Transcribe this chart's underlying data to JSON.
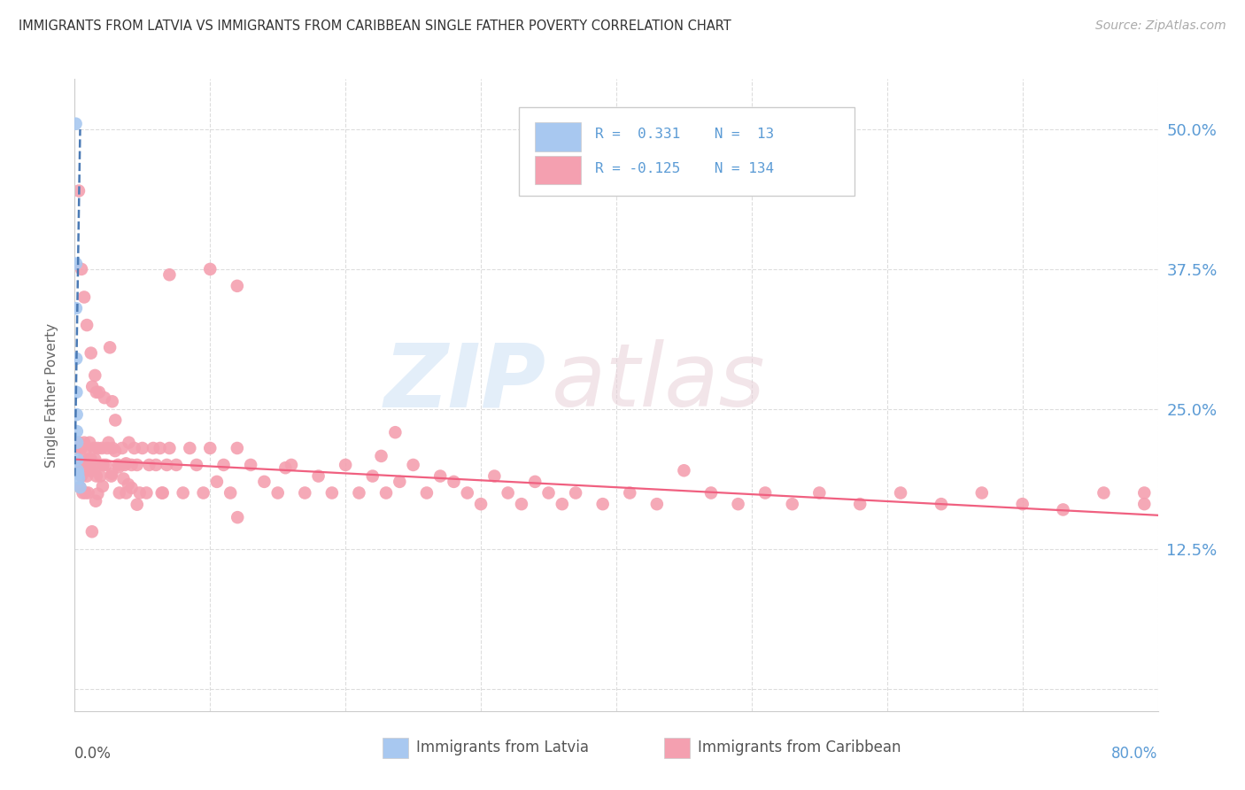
{
  "title": "IMMIGRANTS FROM LATVIA VS IMMIGRANTS FROM CARIBBEAN SINGLE FATHER POVERTY CORRELATION CHART",
  "source": "Source: ZipAtlas.com",
  "ylabel": "Single Father Poverty",
  "color_latvia": "#a8c8f0",
  "color_caribbean": "#f4a0b0",
  "color_trend_latvia": "#4a7ab5",
  "color_trend_caribbean": "#f06080",
  "color_axis_labels": "#5b9bd5",
  "color_title": "#333333",
  "color_source": "#aaaaaa",
  "color_grid": "#dddddd",
  "watermark_zip_color": "#cce0f5",
  "watermark_atlas_color": "#e8d0d8",
  "xlim": [
    0.0,
    0.8
  ],
  "ylim": [
    -0.02,
    0.545
  ],
  "yticks": [
    0.0,
    0.125,
    0.25,
    0.375,
    0.5
  ],
  "ytick_labels": [
    "",
    "12.5%",
    "25.0%",
    "37.5%",
    "50.0%"
  ],
  "xticks": [
    0.0,
    0.1,
    0.2,
    0.3,
    0.4,
    0.5,
    0.6,
    0.7,
    0.8
  ],
  "legend_r1": "R =  0.331",
  "legend_n1": "N =  13",
  "legend_r2": "R = -0.125",
  "legend_n2": "N = 134",
  "latvia_x": [
    0.0008,
    0.001,
    0.001,
    0.0012,
    0.0013,
    0.0015,
    0.0016,
    0.0018,
    0.002,
    0.0022,
    0.0025,
    0.003,
    0.004
  ],
  "latvia_y": [
    0.505,
    0.38,
    0.34,
    0.295,
    0.265,
    0.245,
    0.23,
    0.22,
    0.205,
    0.195,
    0.192,
    0.188,
    0.18
  ],
  "carib_x": [
    0.002,
    0.003,
    0.003,
    0.004,
    0.004,
    0.005,
    0.005,
    0.006,
    0.006,
    0.007,
    0.007,
    0.008,
    0.008,
    0.009,
    0.009,
    0.01,
    0.01,
    0.011,
    0.011,
    0.012,
    0.012,
    0.013,
    0.013,
    0.014,
    0.015,
    0.015,
    0.016,
    0.016,
    0.017,
    0.018,
    0.018,
    0.019,
    0.02,
    0.021,
    0.022,
    0.023,
    0.024,
    0.025,
    0.026,
    0.027,
    0.028,
    0.03,
    0.032,
    0.033,
    0.035,
    0.037,
    0.038,
    0.04,
    0.042,
    0.044,
    0.046,
    0.048,
    0.05,
    0.053,
    0.055,
    0.058,
    0.06,
    0.063,
    0.065,
    0.068,
    0.07,
    0.075,
    0.08,
    0.085,
    0.09,
    0.095,
    0.1,
    0.105,
    0.11,
    0.115,
    0.12,
    0.13,
    0.14,
    0.15,
    0.16,
    0.17,
    0.18,
    0.19,
    0.2,
    0.21,
    0.22,
    0.23,
    0.24,
    0.25,
    0.26,
    0.27,
    0.28,
    0.29,
    0.3,
    0.31,
    0.32,
    0.33,
    0.34,
    0.35,
    0.36,
    0.37,
    0.39,
    0.41,
    0.43,
    0.45,
    0.47,
    0.49,
    0.51,
    0.53,
    0.55,
    0.58,
    0.61,
    0.64,
    0.67,
    0.7,
    0.73,
    0.76,
    0.79,
    0.79
  ],
  "carib_y": [
    0.215,
    0.195,
    0.22,
    0.2,
    0.18,
    0.19,
    0.215,
    0.205,
    0.175,
    0.22,
    0.195,
    0.2,
    0.175,
    0.215,
    0.19,
    0.205,
    0.175,
    0.22,
    0.195,
    0.3,
    0.205,
    0.27,
    0.195,
    0.215,
    0.28,
    0.205,
    0.265,
    0.19,
    0.215,
    0.2,
    0.265,
    0.19,
    0.215,
    0.2,
    0.26,
    0.2,
    0.215,
    0.22,
    0.305,
    0.19,
    0.215,
    0.24,
    0.2,
    0.175,
    0.215,
    0.2,
    0.175,
    0.22,
    0.2,
    0.215,
    0.2,
    0.175,
    0.215,
    0.175,
    0.2,
    0.215,
    0.2,
    0.215,
    0.175,
    0.2,
    0.215,
    0.2,
    0.175,
    0.215,
    0.2,
    0.175,
    0.215,
    0.185,
    0.2,
    0.175,
    0.215,
    0.2,
    0.185,
    0.175,
    0.2,
    0.175,
    0.19,
    0.175,
    0.2,
    0.175,
    0.19,
    0.175,
    0.185,
    0.2,
    0.175,
    0.19,
    0.185,
    0.175,
    0.165,
    0.19,
    0.175,
    0.165,
    0.185,
    0.175,
    0.165,
    0.175,
    0.165,
    0.175,
    0.165,
    0.195,
    0.175,
    0.165,
    0.175,
    0.165,
    0.175,
    0.165,
    0.175,
    0.165,
    0.175,
    0.165,
    0.16,
    0.175,
    0.165,
    0.175
  ],
  "carib_outlier_x": [
    0.003,
    0.005,
    0.007,
    0.009,
    0.07,
    0.1,
    0.12
  ],
  "carib_outlier_y": [
    0.445,
    0.375,
    0.35,
    0.325,
    0.37,
    0.375,
    0.36
  ]
}
